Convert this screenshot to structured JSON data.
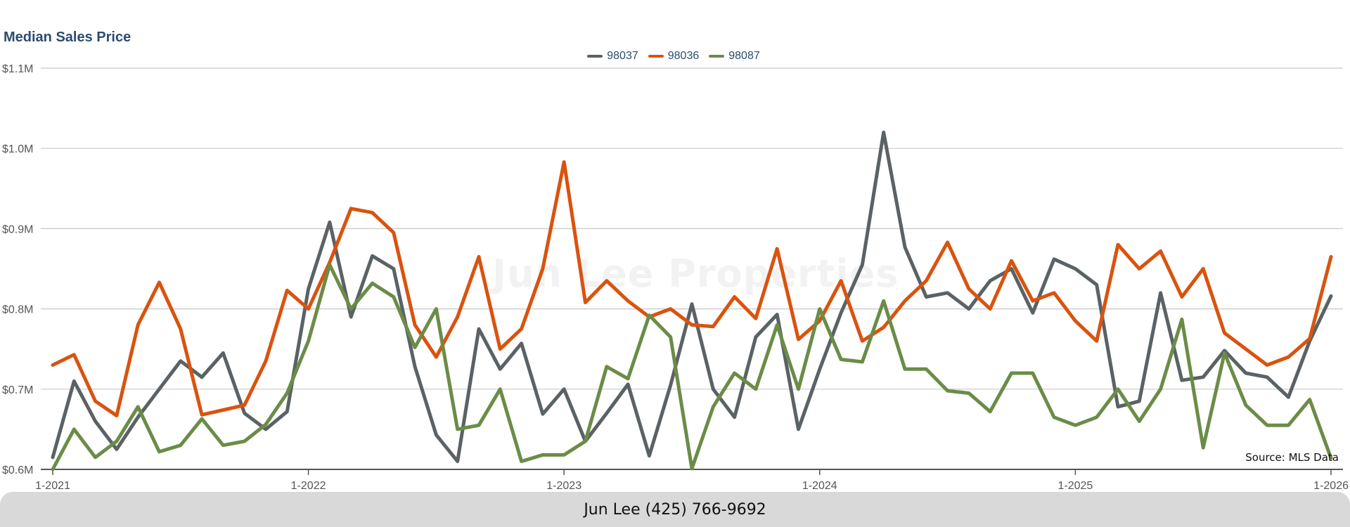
{
  "chart_data": {
    "type": "line",
    "title": "Median Sales Price",
    "xlabel": "",
    "ylabel": "",
    "ylim": [
      0.6,
      1.1
    ],
    "y_ticks": [
      "$0.6M",
      "$0.7M",
      "$0.8M",
      "$0.9M",
      "$1.0M",
      "$1.1M"
    ],
    "x_ticks": [
      "1-2021",
      "1-2022",
      "1-2023",
      "1-2024",
      "1-2025",
      "1-2026"
    ],
    "x_start": "1-2021",
    "x_end": "1-2026",
    "grid": true,
    "legend_position": "top-center",
    "series": [
      {
        "name": "98037",
        "color": "#5a6266",
        "values": [
          0.615,
          0.71,
          0.66,
          0.625,
          0.665,
          0.7,
          0.735,
          0.715,
          0.745,
          0.67,
          0.65,
          0.672,
          0.825,
          0.908,
          0.79,
          0.866,
          0.85,
          0.728,
          0.643,
          0.61,
          0.775,
          0.725,
          0.757,
          0.669,
          0.7,
          0.635,
          0.67,
          0.706,
          0.617,
          0.705,
          0.806,
          0.7,
          0.665,
          0.765,
          0.793,
          0.65,
          0.725,
          0.795,
          0.855,
          1.02,
          0.877,
          0.815,
          0.82,
          0.8,
          0.835,
          0.85,
          0.795,
          0.862,
          0.85,
          0.83,
          0.678,
          0.685,
          0.82,
          0.711,
          0.715,
          0.748,
          0.72,
          0.715,
          0.69,
          0.76,
          0.816
        ]
      },
      {
        "name": "98036",
        "color": "#d9530f",
        "values": [
          0.73,
          0.743,
          0.685,
          0.667,
          0.78,
          0.833,
          0.775,
          0.668,
          0.674,
          0.68,
          0.735,
          0.823,
          0.8,
          0.858,
          0.925,
          0.92,
          0.895,
          0.78,
          0.74,
          0.79,
          0.865,
          0.75,
          0.775,
          0.85,
          0.983,
          0.808,
          0.835,
          0.81,
          0.79,
          0.8,
          0.78,
          0.778,
          0.815,
          0.788,
          0.875,
          0.762,
          0.785,
          0.835,
          0.76,
          0.777,
          0.81,
          0.835,
          0.883,
          0.825,
          0.8,
          0.86,
          0.81,
          0.82,
          0.785,
          0.76,
          0.88,
          0.85,
          0.872,
          0.815,
          0.85,
          0.77,
          0.75,
          0.73,
          0.74,
          0.763,
          0.865
        ]
      },
      {
        "name": "98087",
        "color": "#6b8c47",
        "values": [
          0.6,
          0.65,
          0.615,
          0.635,
          0.678,
          0.622,
          0.63,
          0.663,
          0.63,
          0.635,
          0.656,
          0.695,
          0.76,
          0.855,
          0.8,
          0.832,
          0.815,
          0.752,
          0.8,
          0.65,
          0.655,
          0.7,
          0.61,
          0.618,
          0.618,
          0.635,
          0.728,
          0.713,
          0.792,
          0.765,
          0.601,
          0.678,
          0.72,
          0.7,
          0.78,
          0.7,
          0.8,
          0.737,
          0.734,
          0.81,
          0.725,
          0.725,
          0.698,
          0.695,
          0.672,
          0.72,
          0.72,
          0.665,
          0.655,
          0.665,
          0.7,
          0.66,
          0.7,
          0.787,
          0.627,
          0.745,
          0.68,
          0.655,
          0.655,
          0.687,
          0.614
        ]
      }
    ]
  },
  "source_text": "Source: MLS Data",
  "footer_text": "Jun Lee (425) 766-9692",
  "watermark_text": "Jun Lee Properties"
}
